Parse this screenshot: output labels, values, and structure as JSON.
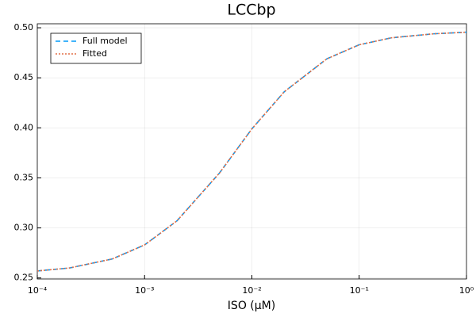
{
  "chart_data": {
    "type": "line",
    "title": "LCCbp",
    "x_label": "ISO (μM)",
    "x": [
      0.0001,
      0.0002,
      0.0005,
      0.001,
      0.002,
      0.005,
      0.01,
      0.02,
      0.05,
      0.1,
      0.2,
      0.5,
      1
    ],
    "series": [
      {
        "name": "Full model",
        "color": "#009af9",
        "dash": "6,4",
        "values": [
          0.257,
          0.26,
          0.269,
          0.283,
          0.307,
          0.355,
          0.399,
          0.436,
          0.469,
          0.483,
          0.49,
          0.494,
          0.4956
        ]
      },
      {
        "name": "Fitted",
        "color": "#e26f46",
        "dash": "2,2",
        "values": [
          0.257,
          0.26,
          0.269,
          0.283,
          0.307,
          0.355,
          0.399,
          0.436,
          0.469,
          0.483,
          0.49,
          0.494,
          0.4956
        ]
      }
    ],
    "xscale": "log",
    "xlim": [
      0.0001,
      1
    ],
    "xticks": [
      {
        "value": 0.0001,
        "label": "10⁻⁴"
      },
      {
        "value": 0.001,
        "label": "10⁻³"
      },
      {
        "value": 0.01,
        "label": "10⁻²"
      },
      {
        "value": 0.1,
        "label": "10⁻¹"
      },
      {
        "value": 1,
        "label": "10⁰"
      }
    ],
    "ylim": [
      0.249,
      0.504
    ],
    "yticks": [
      {
        "value": 0.25,
        "label": "0.25"
      },
      {
        "value": 0.3,
        "label": "0.30"
      },
      0.35,
      {
        "value": 0.4,
        "label": "0.40"
      },
      0.45,
      {
        "value": 0.5,
        "label": "0.50"
      }
    ],
    "grid": true,
    "legend": "top-left"
  }
}
